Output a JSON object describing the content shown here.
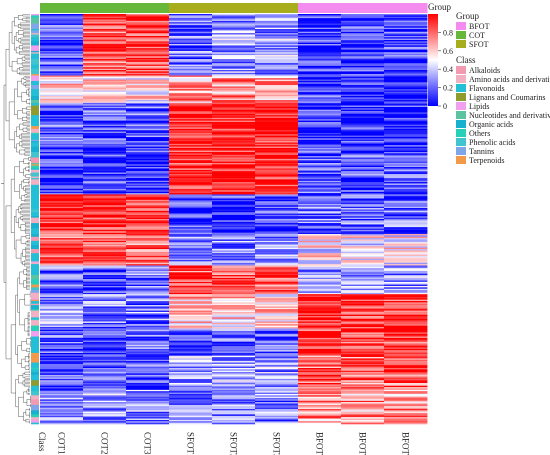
{
  "chart_data": {
    "type": "heatmap",
    "columns": [
      "COT1",
      "COT2",
      "COT3",
      "SFOT1",
      "SFOT2",
      "SFOT3",
      "BFOT1",
      "BFOT2",
      "BFOT3"
    ],
    "column_groups": [
      "COT",
      "COT",
      "COT",
      "SFOT",
      "SFOT",
      "SFOT",
      "BFOT",
      "BFOT",
      "BFOT"
    ],
    "row_annotation_label": "Class",
    "colorbar": {
      "title": "Group",
      "range": [
        0,
        1
      ],
      "ticks": [
        0,
        0.2,
        0.4,
        0.6,
        0.8
      ],
      "low_color": "#0000ff",
      "mid_color": "#ffffff",
      "high_color": "#ff0000"
    },
    "legend_group": {
      "title": "Group",
      "items": [
        {
          "label": "BFOT",
          "color": "#f48cf0"
        },
        {
          "label": "COT",
          "color": "#67b83a"
        },
        {
          "label": "SFOT",
          "color": "#a8ad1e"
        }
      ]
    },
    "legend_class": {
      "title": "Class",
      "items": [
        {
          "label": "Alkaloids",
          "color": "#f49ab0"
        },
        {
          "label": "Amino acids and derivatives",
          "color": "#f2b0c3"
        },
        {
          "label": "Flavonoids",
          "color": "#23bfd6"
        },
        {
          "label": "Lignans and Coumarins",
          "color": "#8f9b2d"
        },
        {
          "label": "Lipids",
          "color": "#f0a0ef"
        },
        {
          "label": "Nucleotides and derivatives",
          "color": "#5cc3a0"
        },
        {
          "label": "Organic acids",
          "color": "#17b0ce"
        },
        {
          "label": "Others",
          "color": "#27d0b8"
        },
        {
          "label": "Phenolic acids",
          "color": "#40c4cf"
        },
        {
          "label": "Tannins",
          "color": "#7fa6e8"
        },
        {
          "label": "Terpenoids",
          "color": "#f39a4a"
        }
      ]
    },
    "cluster_blocks": [
      {
        "rows": [
          0,
          44
        ],
        "values": [
          0.15,
          0.85,
          0.85,
          0.2,
          0.3,
          0.3,
          0.1,
          0.1,
          0.1
        ]
      },
      {
        "rows": [
          45,
          64
        ],
        "values": [
          0.55,
          0.55,
          0.55,
          0.7,
          0.7,
          0.7,
          0.1,
          0.1,
          0.1
        ]
      },
      {
        "rows": [
          65,
          102
        ],
        "values": [
          0.15,
          0.15,
          0.15,
          0.95,
          0.95,
          0.95,
          0.1,
          0.1,
          0.1
        ]
      },
      {
        "rows": [
          103,
          131
        ],
        "values": [
          0.1,
          0.1,
          0.1,
          0.9,
          0.95,
          0.95,
          0.15,
          0.15,
          0.15
        ]
      },
      {
        "rows": [
          132,
          160
        ],
        "values": [
          0.9,
          0.9,
          0.9,
          0.1,
          0.1,
          0.1,
          0.2,
          0.2,
          0.2
        ]
      },
      {
        "rows": [
          161,
          183
        ],
        "values": [
          0.8,
          0.8,
          0.8,
          0.25,
          0.25,
          0.25,
          0.5,
          0.5,
          0.5
        ]
      },
      {
        "rows": [
          184,
          204
        ],
        "values": [
          0.2,
          0.2,
          0.2,
          0.85,
          0.85,
          0.85,
          0.3,
          0.3,
          0.3
        ]
      },
      {
        "rows": [
          205,
          229
        ],
        "values": [
          0.3,
          0.25,
          0.25,
          0.6,
          0.6,
          0.6,
          0.95,
          0.9,
          0.9
        ]
      },
      {
        "rows": [
          230,
          249
        ],
        "values": [
          0.2,
          0.2,
          0.2,
          0.2,
          0.2,
          0.2,
          0.9,
          0.85,
          0.85
        ]
      },
      {
        "rows": [
          250,
          274
        ],
        "values": [
          0.15,
          0.15,
          0.15,
          0.3,
          0.3,
          0.3,
          0.8,
          0.8,
          0.8
        ]
      },
      {
        "rows": [
          275,
          299
        ],
        "values": [
          0.3,
          0.3,
          0.3,
          0.25,
          0.25,
          0.25,
          0.7,
          0.7,
          0.7
        ]
      }
    ]
  }
}
